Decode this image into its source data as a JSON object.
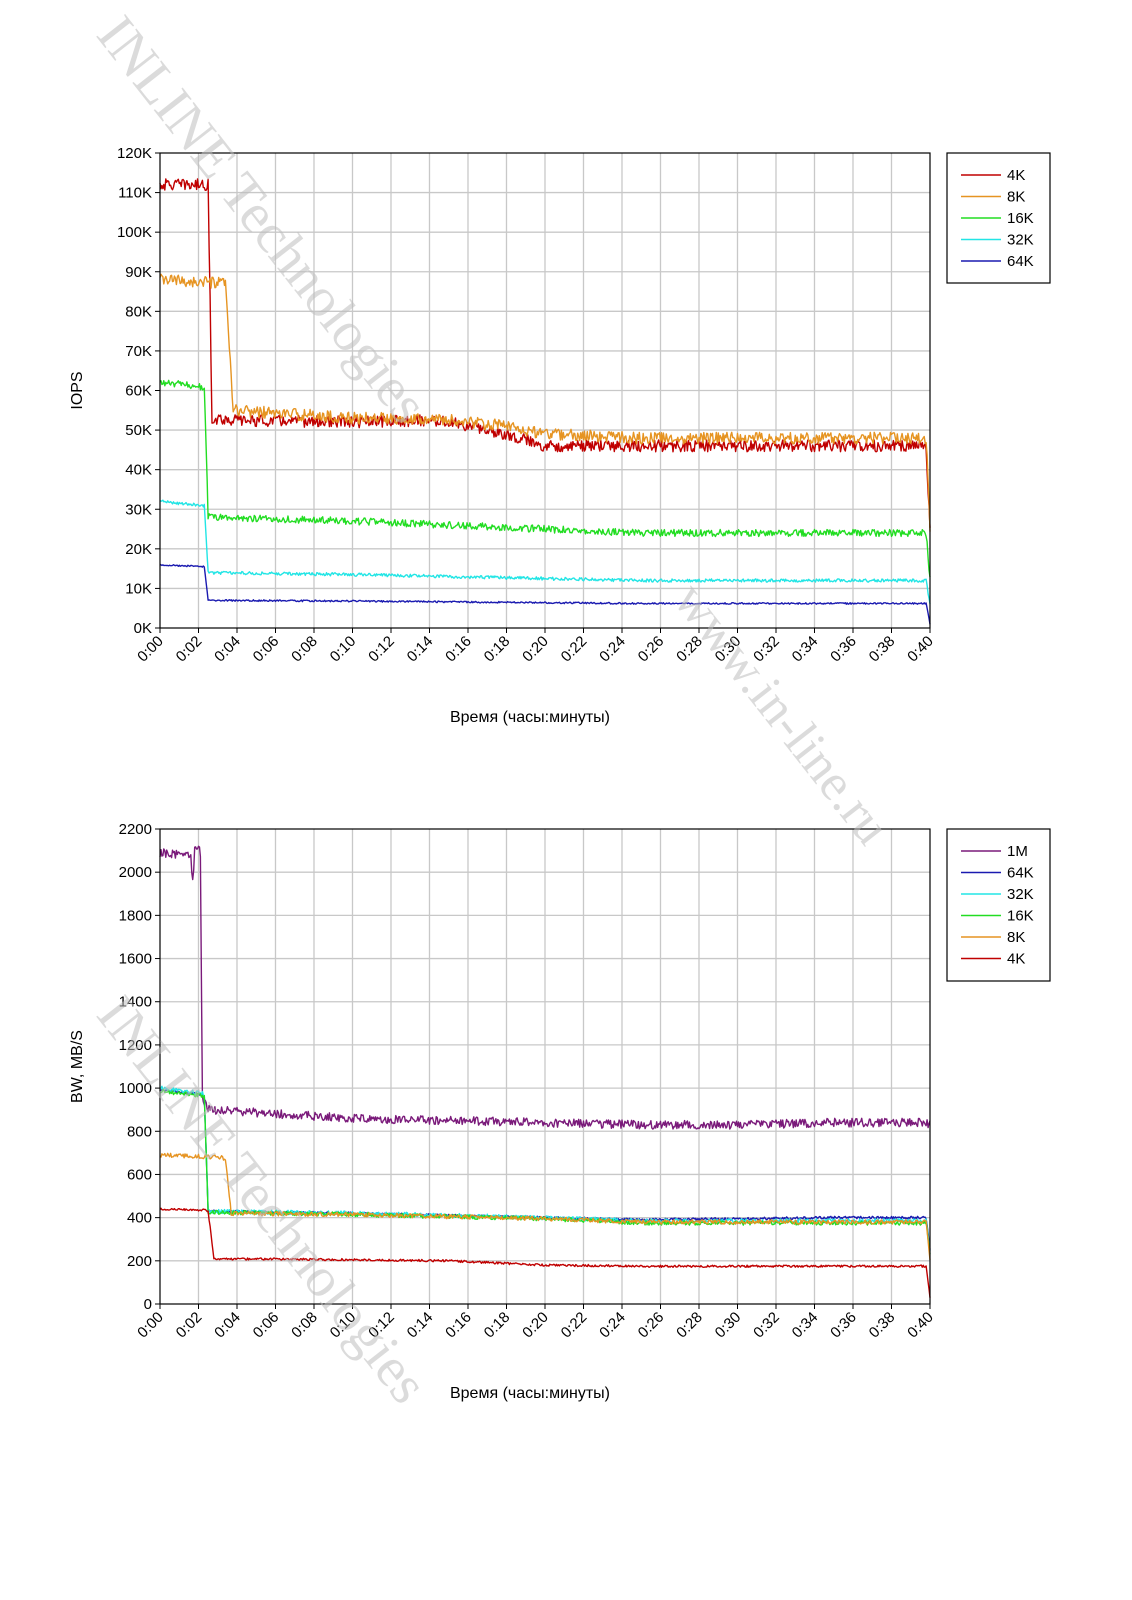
{
  "watermarks": {
    "brand_top": "INLINE Technologies",
    "brand_bottom": "INLINE Technologies",
    "url": "www.in-line.ru"
  },
  "chart_data": [
    {
      "type": "line",
      "name": "iops",
      "ylabel": "IOPS",
      "xlabel": "Время (часы:минуты)",
      "ylim": [
        0,
        120000
      ],
      "xlim_minutes": [
        0,
        40
      ],
      "y_ticks": [
        "0K",
        "10K",
        "20K",
        "30K",
        "40K",
        "50K",
        "60K",
        "70K",
        "80K",
        "90K",
        "100K",
        "110K",
        "120K"
      ],
      "x_ticks": [
        "0:00",
        "0:02",
        "0:04",
        "0:06",
        "0:08",
        "0:10",
        "0:12",
        "0:14",
        "0:16",
        "0:18",
        "0:20",
        "0:22",
        "0:24",
        "0:26",
        "0:28",
        "0:30",
        "0:32",
        "0:34",
        "0:36",
        "0:38",
        "0:40"
      ],
      "grid": true,
      "legend_position": "top-right, outside plot",
      "series": [
        {
          "name": "4K",
          "color": "#c00000",
          "x": [
            0,
            2.0,
            2.5,
            2.7,
            4,
            10,
            14,
            15,
            18,
            20,
            25,
            30,
            35,
            39.8,
            40
          ],
          "y": [
            112000,
            112000,
            112000,
            53000,
            52500,
            52000,
            52500,
            52000,
            49000,
            46000,
            46000,
            46000,
            46000,
            46000,
            25000
          ],
          "noise": 1500
        },
        {
          "name": "8K",
          "color": "#e69422",
          "x": [
            0,
            3.2,
            3.4,
            3.8,
            10,
            14,
            18,
            20,
            25,
            30,
            35,
            39.8,
            40
          ],
          "y": [
            88000,
            87000,
            87000,
            55000,
            53000,
            53000,
            51000,
            49000,
            48000,
            48000,
            48000,
            48000,
            25000
          ],
          "noise": 1500
        },
        {
          "name": "16K",
          "color": "#22dd22",
          "x": [
            0,
            2.2,
            2.3,
            2.5,
            10,
            15,
            20,
            25,
            30,
            35,
            39.8,
            40
          ],
          "y": [
            62000,
            61000,
            61000,
            28000,
            27000,
            26000,
            25000,
            24000,
            24000,
            24000,
            24000,
            12000
          ],
          "noise": 900
        },
        {
          "name": "32K",
          "color": "#22e5e5",
          "x": [
            0,
            2.2,
            2.3,
            2.5,
            10,
            15,
            20,
            25,
            30,
            35,
            39.8,
            40
          ],
          "y": [
            32000,
            31000,
            31000,
            14000,
            13500,
            13000,
            12500,
            12000,
            12000,
            12000,
            12000,
            6000
          ],
          "noise": 400
        },
        {
          "name": "64K",
          "color": "#1a1ab0",
          "x": [
            0,
            2.2,
            2.3,
            2.5,
            10,
            15,
            20,
            25,
            30,
            35,
            39.8,
            40
          ],
          "y": [
            16000,
            15500,
            15500,
            7000,
            6800,
            6600,
            6400,
            6200,
            6200,
            6200,
            6200,
            1000
          ],
          "noise": 200
        }
      ]
    },
    {
      "type": "line",
      "name": "bandwidth",
      "ylabel": "BW, MB/S",
      "xlabel": "Время (часы:минуты)",
      "ylim": [
        0,
        2200
      ],
      "xlim_minutes": [
        0,
        40
      ],
      "y_ticks": [
        "0",
        "200",
        "400",
        "600",
        "800",
        "1000",
        "1200",
        "1400",
        "1600",
        "1800",
        "2000",
        "2200"
      ],
      "x_ticks": [
        "0:00",
        "0:02",
        "0:04",
        "0:06",
        "0:08",
        "0:10",
        "0:12",
        "0:14",
        "0:16",
        "0:18",
        "0:20",
        "0:22",
        "0:24",
        "0:26",
        "0:28",
        "0:30",
        "0:32",
        "0:34",
        "0:36",
        "0:38",
        "0:40"
      ],
      "grid": true,
      "legend_position": "top-right, outside plot",
      "series": [
        {
          "name": "1M",
          "color": "#7a1a7a",
          "x": [
            0,
            1.6,
            1.7,
            1.8,
            2.0,
            2.1,
            2.2,
            2.5,
            10,
            15,
            20,
            25,
            30,
            35,
            39.8,
            40
          ],
          "y": [
            2090,
            2080,
            1950,
            2100,
            2110,
            2090,
            950,
            900,
            860,
            850,
            840,
            830,
            830,
            840,
            840,
            830
          ],
          "noise": 20
        },
        {
          "name": "64K",
          "color": "#1a1ab0",
          "x": [
            0,
            2.2,
            2.3,
            2.5,
            10,
            20,
            25,
            30,
            35,
            39.8,
            40
          ],
          "y": [
            990,
            970,
            960,
            430,
            420,
            400,
            390,
            395,
            400,
            400,
            250
          ],
          "noise": 6
        },
        {
          "name": "32K",
          "color": "#22e5e5",
          "x": [
            0,
            2.2,
            2.3,
            2.5,
            10,
            20,
            25,
            30,
            35,
            39.8,
            40
          ],
          "y": [
            1000,
            975,
            970,
            430,
            420,
            400,
            385,
            385,
            385,
            385,
            250
          ],
          "noise": 10
        },
        {
          "name": "16K",
          "color": "#22dd22",
          "x": [
            0,
            2.2,
            2.3,
            2.5,
            10,
            20,
            25,
            30,
            35,
            39.8,
            40
          ],
          "y": [
            985,
            965,
            960,
            425,
            415,
            395,
            375,
            375,
            375,
            375,
            240
          ],
          "noise": 10
        },
        {
          "name": "8K",
          "color": "#e69422",
          "x": [
            0,
            3.2,
            3.4,
            3.7,
            10,
            20,
            25,
            30,
            35,
            39.8,
            40
          ],
          "y": [
            690,
            680,
            670,
            420,
            415,
            395,
            380,
            380,
            380,
            380,
            200
          ],
          "noise": 10
        },
        {
          "name": "4K",
          "color": "#c00000",
          "x": [
            0,
            2.4,
            2.5,
            2.8,
            10,
            15,
            20,
            25,
            30,
            35,
            39.8,
            40
          ],
          "y": [
            440,
            435,
            430,
            210,
            205,
            200,
            180,
            175,
            175,
            175,
            175,
            30
          ],
          "noise": 5
        }
      ]
    }
  ]
}
